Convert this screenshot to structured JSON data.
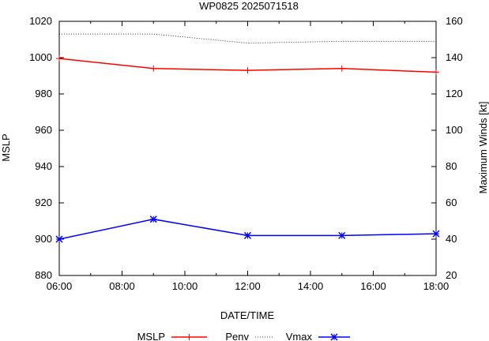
{
  "chart_data": {
    "type": "line",
    "title": "WP0825 2025071518",
    "xlabel": "DATE/TIME",
    "ylabel": "MSLP",
    "y2label": "Maximum Winds [kt]",
    "x_ticks": [
      "06:00",
      "08:00",
      "10:00",
      "12:00",
      "14:00",
      "16:00",
      "18:00"
    ],
    "xlim": [
      "06:00",
      "18:00"
    ],
    "ylim": [
      880,
      1020
    ],
    "y2lim": [
      20,
      160
    ],
    "y_ticks": [
      880,
      900,
      920,
      940,
      960,
      980,
      1000,
      1020
    ],
    "y2_ticks": [
      20,
      40,
      60,
      80,
      100,
      120,
      140,
      160
    ],
    "grid": false,
    "legend_position": "bottom",
    "series": [
      {
        "name": "MSLP",
        "axis": "left",
        "color": "#ff0000",
        "style": "solid",
        "marker": "plus",
        "x": [
          "06:00",
          "09:00",
          "12:00",
          "15:00",
          "18:00"
        ],
        "values": [
          999.5,
          994,
          993,
          994,
          992
        ]
      },
      {
        "name": "Penv",
        "axis": "left",
        "color": "#000000",
        "style": "dotted",
        "marker": "none",
        "x": [
          "06:00",
          "09:00",
          "12:00",
          "15:00",
          "18:00"
        ],
        "values": [
          1013,
          1013,
          1008,
          1009,
          1009
        ]
      },
      {
        "name": "Vmax",
        "axis": "right",
        "color": "#0000ff",
        "style": "solid",
        "marker": "star",
        "x": [
          "06:00",
          "09:00",
          "12:00",
          "15:00",
          "18:00"
        ],
        "values": [
          40,
          51,
          42,
          42,
          43
        ]
      }
    ]
  }
}
